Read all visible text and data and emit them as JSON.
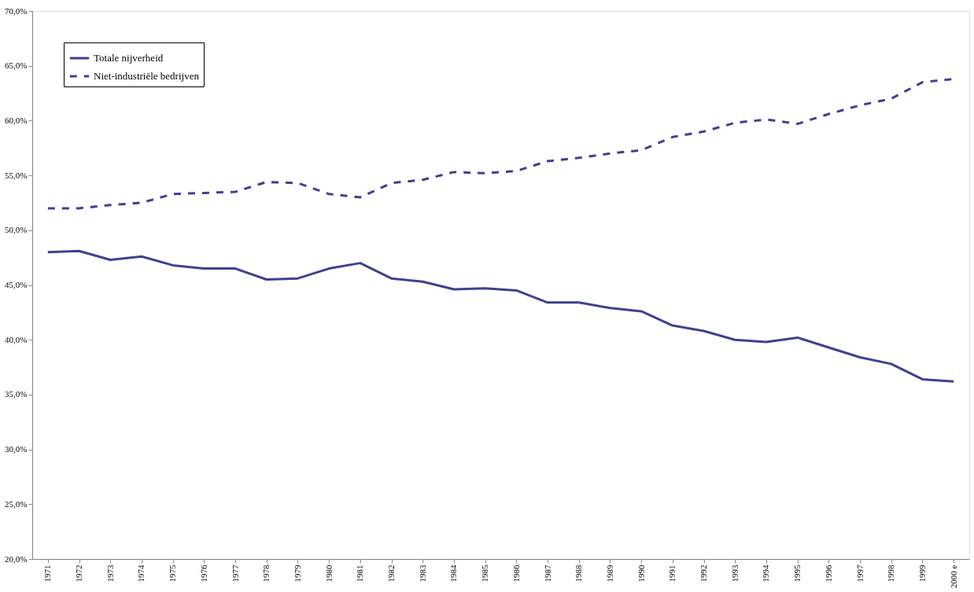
{
  "chart_data": {
    "type": "line",
    "categories": [
      "1971",
      "1972",
      "1973",
      "1974",
      "1975",
      "1976",
      "1977",
      "1978",
      "1979",
      "1980",
      "1981",
      "1982",
      "1983",
      "1984",
      "1985",
      "1986",
      "1987",
      "1988",
      "1989",
      "1990",
      "1991",
      "1992",
      "1993",
      "1994",
      "1995",
      "1996",
      "1997",
      "1998",
      "1999",
      "2000 e"
    ],
    "series": [
      {
        "name": "Totale nijverheid",
        "color": "#404090",
        "line_style": "solid",
        "values": [
          48.0,
          48.1,
          47.3,
          47.6,
          46.8,
          46.5,
          46.5,
          45.5,
          45.6,
          46.5,
          47.0,
          45.6,
          45.3,
          44.6,
          44.7,
          44.5,
          43.4,
          43.4,
          42.9,
          42.6,
          41.3,
          40.8,
          40.0,
          39.8,
          40.2,
          39.3,
          38.4,
          37.8,
          36.4,
          36.2
        ]
      },
      {
        "name": "Niet-industriële bedrijven",
        "color": "#404090",
        "line_style": "dashed",
        "values": [
          52.0,
          52.0,
          52.3,
          52.5,
          53.3,
          53.4,
          53.5,
          54.4,
          54.3,
          53.3,
          53.0,
          54.3,
          54.6,
          55.3,
          55.2,
          55.4,
          56.3,
          56.6,
          57.0,
          57.3,
          58.5,
          59.0,
          59.8,
          60.1,
          59.7,
          60.6,
          61.4,
          62.0,
          63.5,
          63.8
        ]
      }
    ],
    "ylim": [
      20,
      70
    ],
    "yticks": [
      {
        "value": 20,
        "label": "20,0%"
      },
      {
        "value": 25,
        "label": "25,0%"
      },
      {
        "value": 30,
        "label": "30,0%"
      },
      {
        "value": 35,
        "label": "35,0%"
      },
      {
        "value": 40,
        "label": "40,0%"
      },
      {
        "value": 45,
        "label": "45,0%"
      },
      {
        "value": 50,
        "label": "50,0%"
      },
      {
        "value": 55,
        "label": "55,0%"
      },
      {
        "value": 60,
        "label": "60,0%"
      },
      {
        "value": 65,
        "label": "65,0%"
      },
      {
        "value": 70,
        "label": "70,0%"
      }
    ],
    "grid": false,
    "legend": "top left",
    "marker": "none"
  }
}
